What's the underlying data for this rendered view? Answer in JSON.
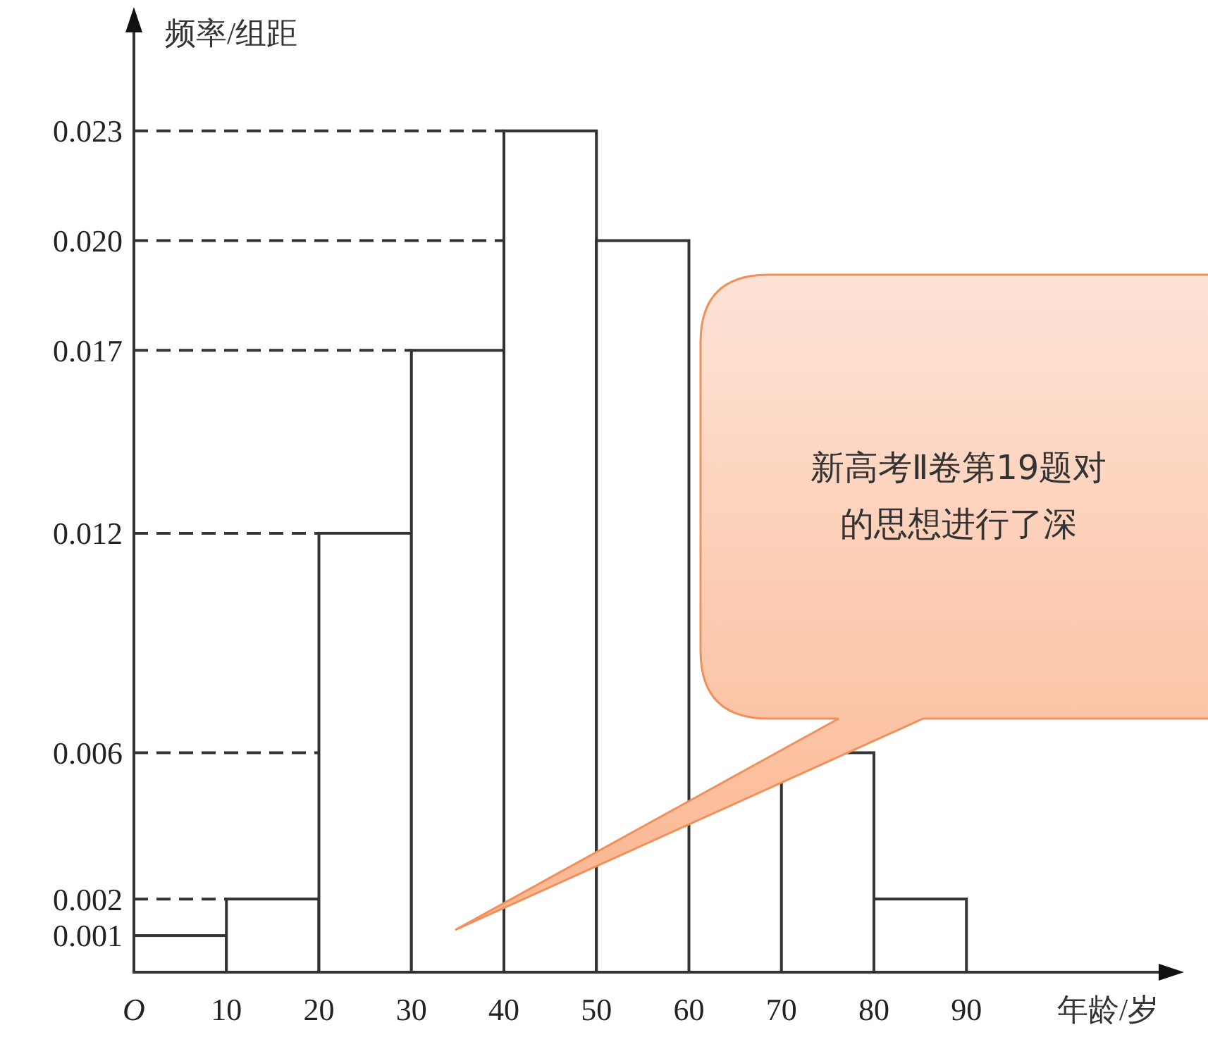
{
  "chart_data": {
    "type": "histogram",
    "xlabel": "年龄/岁",
    "ylabel": "频率/组距",
    "bins": [
      0,
      10,
      20,
      30,
      40,
      50,
      60,
      70,
      80,
      90
    ],
    "values": [
      0.001,
      0.002,
      0.012,
      0.017,
      0.023,
      0.02,
      null,
      0.006,
      0.002
    ],
    "color": "#ffffff",
    "xlim": [
      0,
      112
    ],
    "xticks": [
      {
        "value": 0,
        "label": "O"
      },
      10,
      20,
      30,
      40,
      50,
      60,
      70,
      80,
      90
    ],
    "ylim": [
      0,
      0.026
    ],
    "yticks": [
      0.001,
      0.002,
      0.006,
      0.012,
      0.017,
      {
        "value": 0.02,
        "label": "0.020"
      },
      0.023
    ],
    "ref_lines": [
      {
        "axis": "y",
        "value": 0.002,
        "color": "#333333",
        "line_style": "dashed"
      },
      {
        "axis": "y",
        "value": 0.006,
        "color": "#333333",
        "line_style": "dashed"
      },
      {
        "axis": "y",
        "value": 0.012,
        "color": "#333333",
        "line_style": "dashed"
      },
      {
        "axis": "y",
        "value": 0.017,
        "color": "#333333",
        "line_style": "dashed"
      },
      {
        "axis": "y",
        "value": 0.02,
        "color": "#333333",
        "line_style": "dashed"
      },
      {
        "axis": "y",
        "value": 0.023,
        "color": "#333333",
        "line_style": "dashed"
      }
    ],
    "annotations": [
      "新高考Ⅱ卷第19题对",
      "的思想进行了深"
    ]
  }
}
